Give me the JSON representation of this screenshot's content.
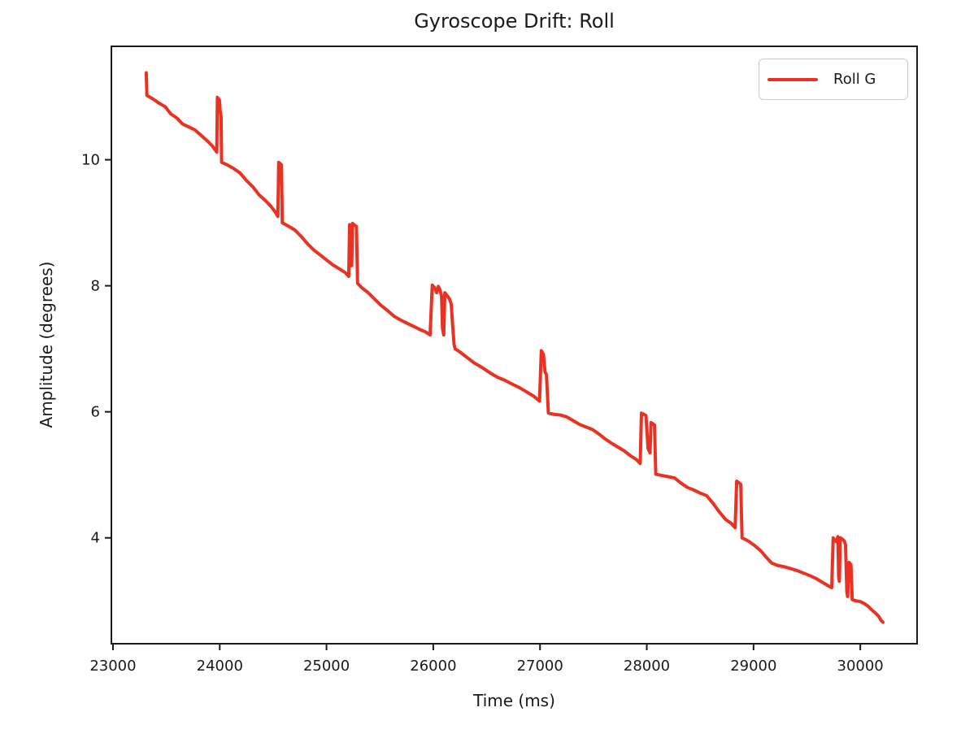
{
  "figure": {
    "background": "#ffffff",
    "text_color": "#1a1a1a"
  },
  "chart_data": {
    "type": "line",
    "title": "Gyroscope Drift: Roll",
    "xlabel": "Time (ms)",
    "ylabel": "Amplitude (degrees)",
    "xlim": [
      22985,
      30532
    ],
    "ylim": [
      2.32,
      11.8
    ],
    "xticks": [
      23000,
      24000,
      25000,
      26000,
      27000,
      28000,
      29000,
      30000
    ],
    "yticks": [
      4,
      6,
      8,
      10
    ],
    "grid": false,
    "legend": {
      "position": "upper right",
      "entries": [
        {
          "label": "Roll G",
          "color": "#e93223"
        }
      ]
    },
    "series": [
      {
        "name": "Roll G",
        "color": "#e93223",
        "linewidth": 4,
        "points": [
          [
            23312,
            11.38
          ],
          [
            23318,
            11.02
          ],
          [
            23370,
            10.97
          ],
          [
            23430,
            10.9
          ],
          [
            23490,
            10.84
          ],
          [
            23540,
            10.73
          ],
          [
            23600,
            10.66
          ],
          [
            23650,
            10.57
          ],
          [
            23710,
            10.52
          ],
          [
            23770,
            10.47
          ],
          [
            23830,
            10.38
          ],
          [
            23890,
            10.29
          ],
          [
            23930,
            10.22
          ],
          [
            23965,
            10.14
          ],
          [
            23972,
            10.12
          ],
          [
            23978,
            10.99
          ],
          [
            23996,
            10.95
          ],
          [
            24004,
            10.78
          ],
          [
            24012,
            10.68
          ],
          [
            24018,
            9.96
          ],
          [
            24070,
            9.92
          ],
          [
            24130,
            9.86
          ],
          [
            24190,
            9.79
          ],
          [
            24250,
            9.67
          ],
          [
            24310,
            9.57
          ],
          [
            24370,
            9.44
          ],
          [
            24430,
            9.35
          ],
          [
            24480,
            9.26
          ],
          [
            24520,
            9.17
          ],
          [
            24545,
            9.1
          ],
          [
            24552,
            9.96
          ],
          [
            24578,
            9.92
          ],
          [
            24586,
            9.0
          ],
          [
            24640,
            8.95
          ],
          [
            24700,
            8.89
          ],
          [
            24760,
            8.79
          ],
          [
            24820,
            8.67
          ],
          [
            24880,
            8.57
          ],
          [
            24940,
            8.49
          ],
          [
            25000,
            8.41
          ],
          [
            25060,
            8.33
          ],
          [
            25120,
            8.27
          ],
          [
            25175,
            8.21
          ],
          [
            25208,
            8.15
          ],
          [
            25216,
            8.97
          ],
          [
            25229,
            8.94
          ],
          [
            25236,
            8.32
          ],
          [
            25244,
            8.99
          ],
          [
            25280,
            8.94
          ],
          [
            25291,
            8.04
          ],
          [
            25330,
            7.97
          ],
          [
            25390,
            7.89
          ],
          [
            25450,
            7.79
          ],
          [
            25510,
            7.69
          ],
          [
            25570,
            7.61
          ],
          [
            25630,
            7.52
          ],
          [
            25690,
            7.46
          ],
          [
            25750,
            7.41
          ],
          [
            25810,
            7.36
          ],
          [
            25870,
            7.31
          ],
          [
            25925,
            7.27
          ],
          [
            25970,
            7.22
          ],
          [
            25991,
            8.01
          ],
          [
            26012,
            7.97
          ],
          [
            26032,
            7.89
          ],
          [
            26047,
            7.99
          ],
          [
            26062,
            7.94
          ],
          [
            26078,
            7.84
          ],
          [
            26087,
            7.32
          ],
          [
            26098,
            7.22
          ],
          [
            26108,
            7.89
          ],
          [
            26132,
            7.84
          ],
          [
            26152,
            7.79
          ],
          [
            26168,
            7.71
          ],
          [
            26181,
            7.38
          ],
          [
            26194,
            7.08
          ],
          [
            26205,
            7.0
          ],
          [
            26250,
            6.95
          ],
          [
            26310,
            6.87
          ],
          [
            26380,
            6.78
          ],
          [
            26450,
            6.71
          ],
          [
            26530,
            6.62
          ],
          [
            26600,
            6.55
          ],
          [
            26670,
            6.5
          ],
          [
            26740,
            6.44
          ],
          [
            26810,
            6.38
          ],
          [
            26880,
            6.31
          ],
          [
            26940,
            6.25
          ],
          [
            26995,
            6.17
          ],
          [
            27012,
            6.97
          ],
          [
            27032,
            6.91
          ],
          [
            27046,
            6.64
          ],
          [
            27060,
            6.59
          ],
          [
            27078,
            5.98
          ],
          [
            27130,
            5.96
          ],
          [
            27190,
            5.95
          ],
          [
            27250,
            5.92
          ],
          [
            27310,
            5.86
          ],
          [
            27370,
            5.8
          ],
          [
            27430,
            5.76
          ],
          [
            27490,
            5.72
          ],
          [
            27550,
            5.65
          ],
          [
            27610,
            5.57
          ],
          [
            27670,
            5.5
          ],
          [
            27730,
            5.44
          ],
          [
            27790,
            5.38
          ],
          [
            27850,
            5.3
          ],
          [
            27905,
            5.24
          ],
          [
            27938,
            5.18
          ],
          [
            27950,
            5.98
          ],
          [
            27992,
            5.94
          ],
          [
            28012,
            5.42
          ],
          [
            28030,
            5.35
          ],
          [
            28040,
            5.83
          ],
          [
            28072,
            5.79
          ],
          [
            28084,
            5.01
          ],
          [
            28140,
            4.99
          ],
          [
            28200,
            4.97
          ],
          [
            28260,
            4.95
          ],
          [
            28320,
            4.87
          ],
          [
            28380,
            4.8
          ],
          [
            28440,
            4.76
          ],
          [
            28500,
            4.71
          ],
          [
            28560,
            4.67
          ],
          [
            28620,
            4.55
          ],
          [
            28680,
            4.41
          ],
          [
            28740,
            4.29
          ],
          [
            28790,
            4.23
          ],
          [
            28828,
            4.16
          ],
          [
            28842,
            4.9
          ],
          [
            28880,
            4.85
          ],
          [
            28892,
            4.0
          ],
          [
            28950,
            3.95
          ],
          [
            29010,
            3.88
          ],
          [
            29070,
            3.79
          ],
          [
            29120,
            3.69
          ],
          [
            29170,
            3.6
          ],
          [
            29230,
            3.56
          ],
          [
            29290,
            3.54
          ],
          [
            29350,
            3.51
          ],
          [
            29410,
            3.48
          ],
          [
            29470,
            3.44
          ],
          [
            29530,
            3.4
          ],
          [
            29590,
            3.35
          ],
          [
            29650,
            3.29
          ],
          [
            29700,
            3.24
          ],
          [
            29732,
            3.21
          ],
          [
            29746,
            4.0
          ],
          [
            29762,
            3.96
          ],
          [
            29776,
            3.94
          ],
          [
            29790,
            4.02
          ],
          [
            29797,
            3.38
          ],
          [
            29804,
            3.31
          ],
          [
            29812,
            4.0
          ],
          [
            29832,
            3.98
          ],
          [
            29850,
            3.95
          ],
          [
            29862,
            3.89
          ],
          [
            29874,
            3.14
          ],
          [
            29882,
            3.07
          ],
          [
            29896,
            3.61
          ],
          [
            29913,
            3.57
          ],
          [
            29924,
            3.02
          ],
          [
            29960,
            3.0
          ],
          [
            30000,
            2.99
          ],
          [
            30035,
            2.96
          ],
          [
            30070,
            2.92
          ],
          [
            30105,
            2.86
          ],
          [
            30140,
            2.81
          ],
          [
            30170,
            2.76
          ],
          [
            30195,
            2.69
          ],
          [
            30212,
            2.66
          ]
        ]
      }
    ]
  }
}
